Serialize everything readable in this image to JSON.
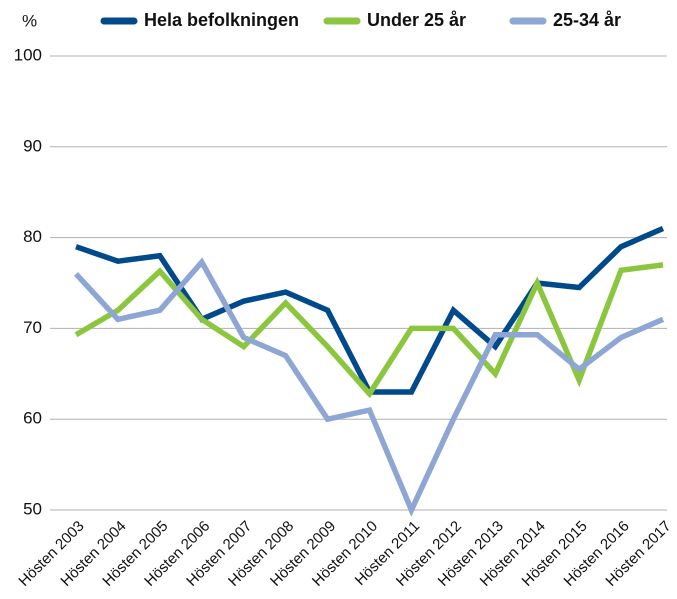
{
  "chart_data": {
    "type": "line",
    "y_unit": "%",
    "categories": [
      "Hösten 2003",
      "Hösten 2004",
      "Hösten 2005",
      "Hösten 2006",
      "Hösten 2007",
      "Hösten 2008",
      "Hösten 2009",
      "Hösten 2010",
      "Hösten 2011",
      "Hösten 2012",
      "Hösten 2013",
      "Hösten 2014",
      "Hösten 2015",
      "Hösten 2016",
      "Hösten 2017"
    ],
    "series": [
      {
        "name": "Hela befolkningen",
        "color": "#004a8c",
        "values": [
          79,
          77.4,
          78,
          71,
          73,
          74,
          72,
          63,
          63,
          72,
          68,
          75,
          74.5,
          79,
          81
        ]
      },
      {
        "name": "Under 25 år",
        "color": "#8cc63f",
        "values": [
          69.3,
          72,
          76.3,
          71,
          68,
          72.8,
          68,
          62.8,
          70,
          70,
          65,
          75,
          64.3,
          76.4,
          77
        ]
      },
      {
        "name": "25-34 år",
        "color": "#8ea6d4",
        "values": [
          76,
          71,
          72,
          77.3,
          69,
          67,
          60,
          61,
          50,
          60,
          69.3,
          69.3,
          65.5,
          69,
          71
        ]
      }
    ],
    "ylim": [
      50,
      100
    ],
    "yticks": [
      50,
      60,
      70,
      80,
      90,
      100
    ],
    "grid": true,
    "legend": "top"
  }
}
